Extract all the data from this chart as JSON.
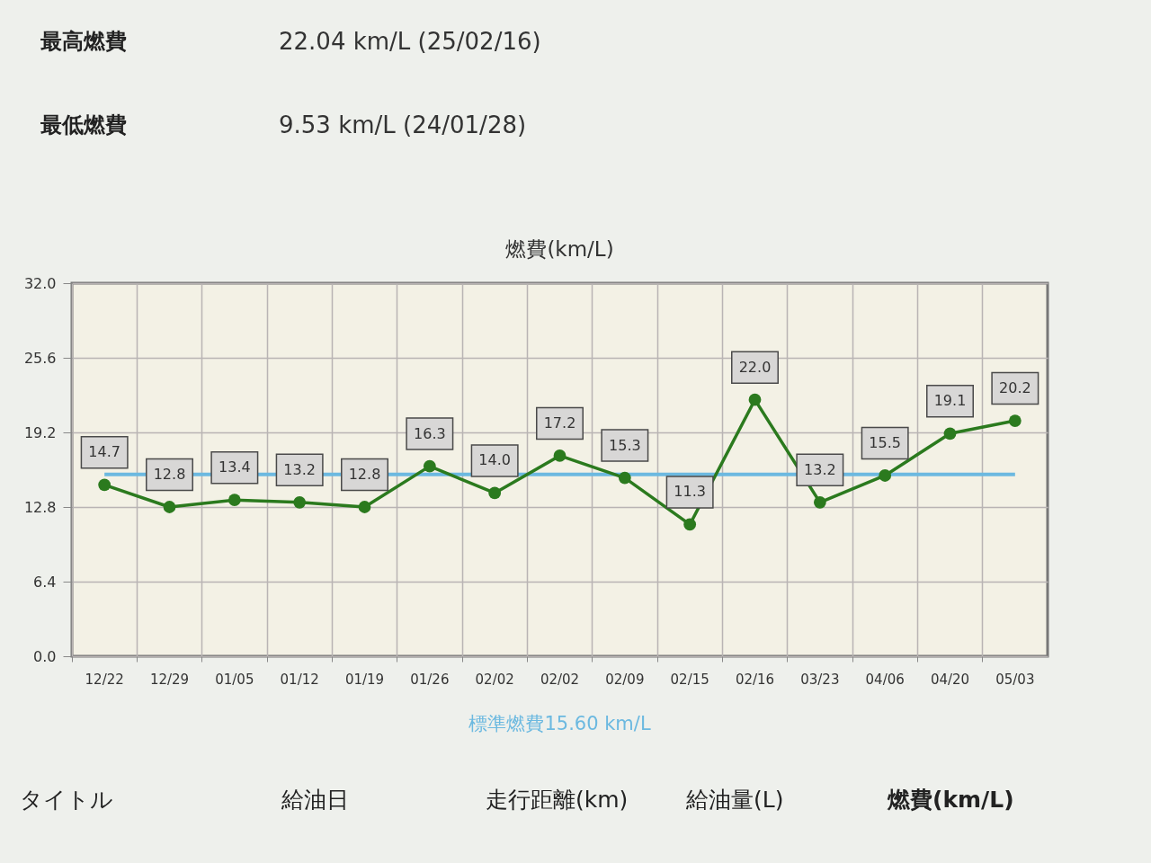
{
  "chart_data": {
    "type": "line",
    "title": "燃費(km/L)",
    "categories": [
      "12/22",
      "12/29",
      "01/05",
      "01/12",
      "01/19",
      "01/26",
      "02/02",
      "02/02",
      "02/09",
      "02/15",
      "02/16",
      "03/23",
      "04/06",
      "04/20",
      "05/03"
    ],
    "series": [
      {
        "color": "#2b7a1e",
        "values": [
          14.7,
          12.8,
          13.4,
          13.2,
          12.8,
          16.3,
          14.0,
          17.2,
          15.3,
          11.3,
          22.0,
          13.2,
          15.5,
          19.1,
          20.2
        ],
        "value_labels": [
          "14.7",
          "12.8",
          "13.4",
          "13.2",
          "12.8",
          "16.3",
          "14.0",
          "17.2",
          "15.3",
          "11.3",
          "22.0",
          "13.2",
          "15.5",
          "19.1",
          "20.2"
        ]
      }
    ],
    "ylim": [
      0,
      32
    ],
    "yticks": [
      {
        "value": 0,
        "label": "0.0"
      },
      6.4,
      12.8,
      19.2,
      25.6,
      {
        "value": 32,
        "label": "32.0"
      }
    ],
    "ref_lines": [
      {
        "axis": "y",
        "value": 15.6,
        "label": "標準燃費15.60 km/L",
        "color": "#6cb9e0"
      }
    ],
    "annotations": [
      "最高燃費",
      "22.04 km/L (25/02/16)",
      "最低燃費",
      "9.53 km/L (24/01/28)",
      "タイトル",
      "給油日",
      "走行距離(km)",
      "給油量(L)",
      "燃費(km/L)"
    ],
    "grid": true,
    "marker": "circle",
    "line_style": "solid"
  }
}
